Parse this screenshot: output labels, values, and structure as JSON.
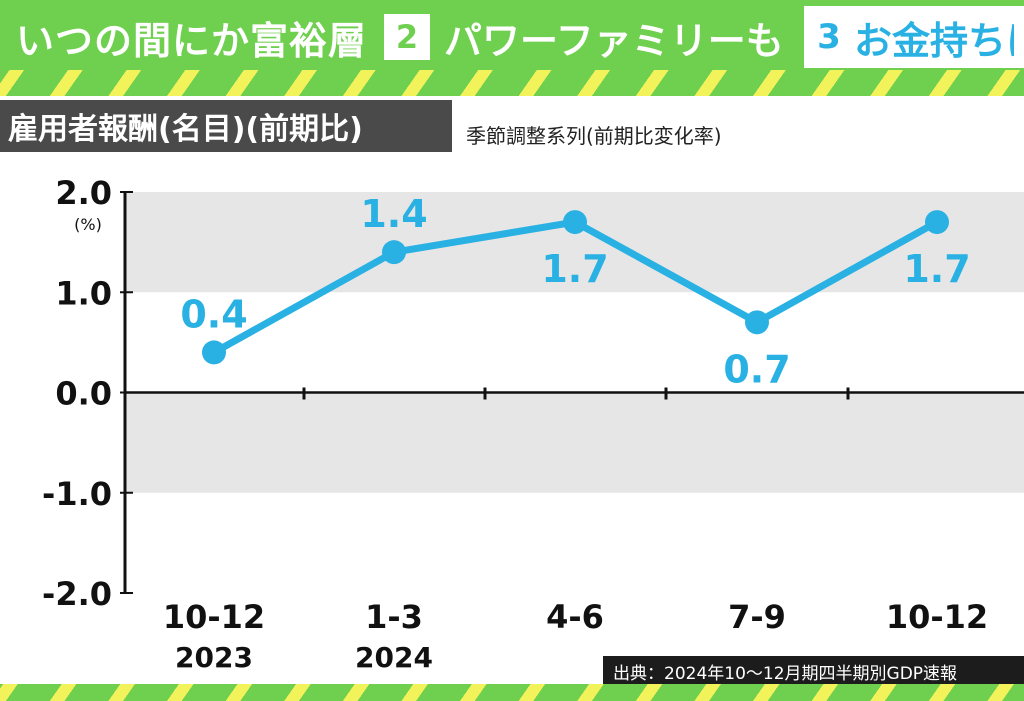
{
  "header": {
    "tab1": "いつの間にか富裕層",
    "tab2_num": "2",
    "tab2": "パワーファミリーも",
    "tab3_num": "3",
    "tab3": "お金持ちに"
  },
  "title": "雇用者報酬(名目)(前期比)",
  "subtitle": "季節調整系列(前期比変化率)",
  "source": "出典：2024年10～12月期四半期別GDP速報",
  "colors": {
    "line": "#29b1e3",
    "header_green": "#6fcf4e",
    "band": "#e6e6e6",
    "title_bg": "#4a4a4a"
  },
  "chart_data": {
    "type": "line",
    "unit_label": "(%)",
    "categories": [
      "10-12",
      "1-3",
      "4-6",
      "7-9",
      "10-12"
    ],
    "year_labels": [
      "2023",
      "2024",
      "",
      "",
      ""
    ],
    "values": [
      0.4,
      1.4,
      1.7,
      0.7,
      1.7
    ],
    "value_labels": [
      "0.4",
      "1.4",
      "1.7",
      "0.7",
      "1.7"
    ],
    "label_position": [
      "above",
      "above",
      "below",
      "below",
      "below"
    ],
    "yticks": [
      "2.0",
      "1.0",
      "0.0",
      "-1.0",
      "-2.0"
    ],
    "ylim": [
      -2,
      2
    ],
    "shaded_bands": [
      [
        1,
        2
      ],
      [
        -1,
        0
      ]
    ]
  }
}
